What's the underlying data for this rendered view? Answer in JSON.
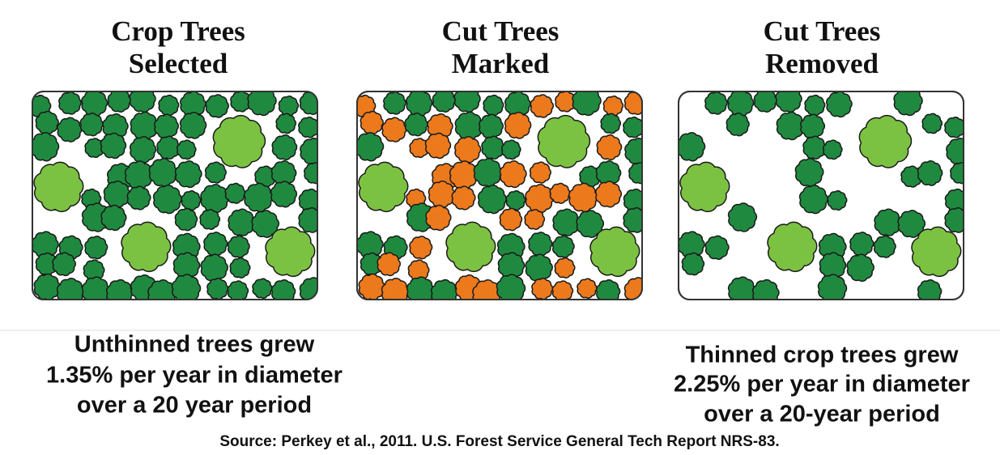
{
  "panels": [
    {
      "title": [
        "Crop Trees",
        "Selected"
      ]
    },
    {
      "title": [
        "Cut Trees",
        "Marked"
      ]
    },
    {
      "title": [
        "Cut Trees",
        "Removed"
      ]
    }
  ],
  "captions": {
    "left": [
      "Unthinned trees grew",
      "1.35% per year in diameter",
      "over a 20 year period"
    ],
    "right": [
      "Thinned crop trees grew",
      "2.25% per year in diameter",
      "over a 20-year period"
    ]
  },
  "source": "Source: Perkey et al., 2011. U.S. Forest Service General Tech Report NRS-83."
}
